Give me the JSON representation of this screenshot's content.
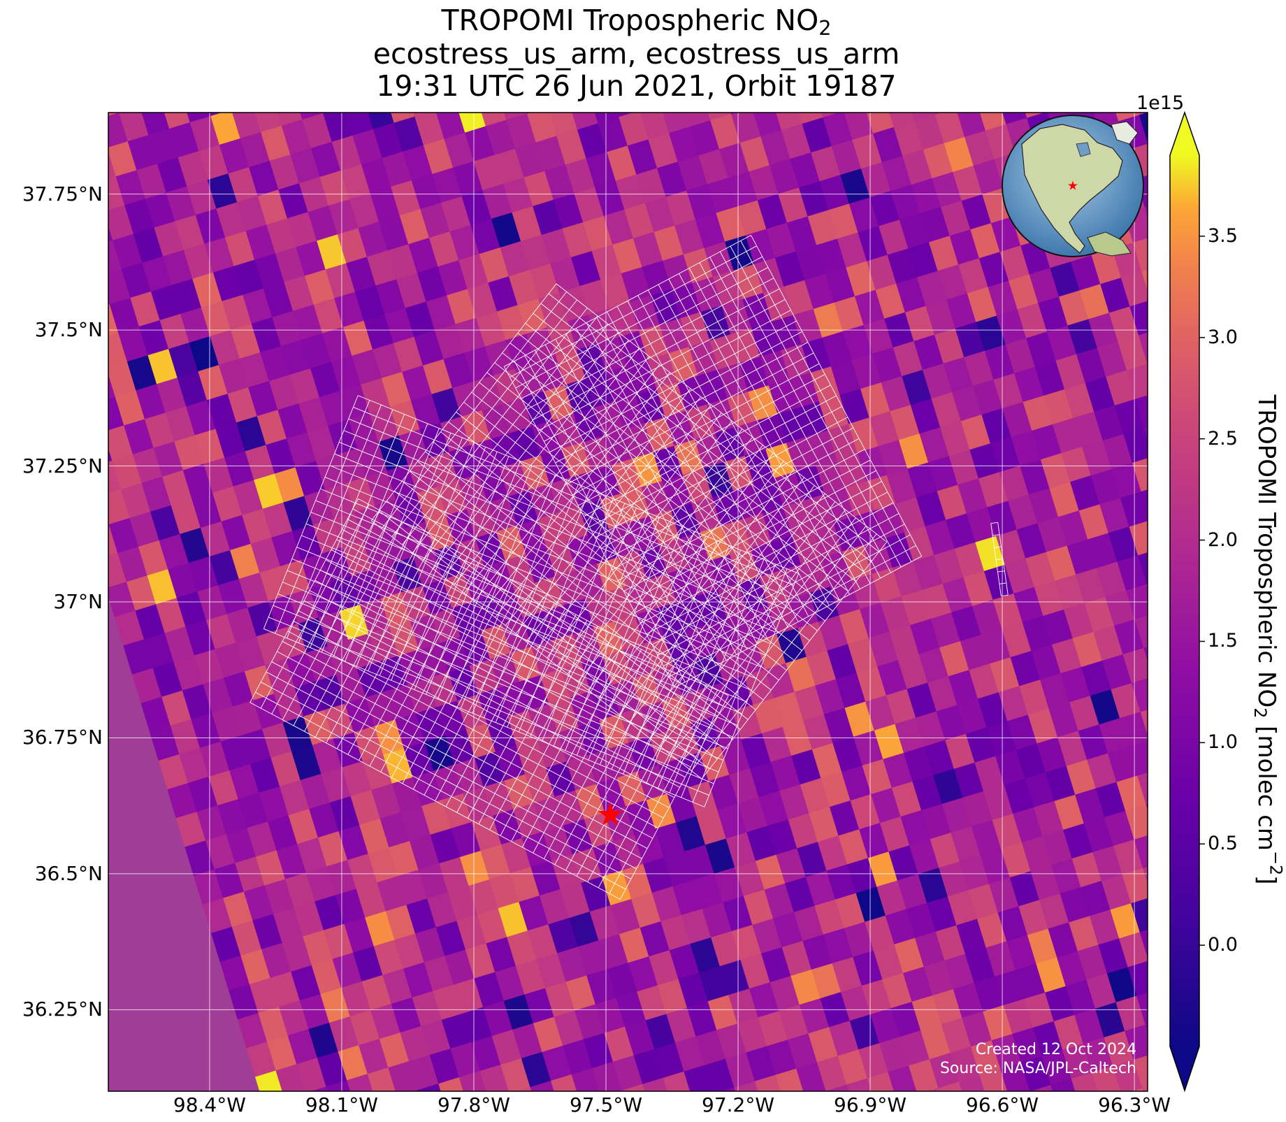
{
  "title": {
    "line1_main": "TROPOMI Tropospheric NO",
    "line1_sub": "2",
    "line2": "ecostress_us_arm, ecostress_us_arm",
    "line3": "19:31 UTC 26 Jun 2021, Orbit 19187"
  },
  "map": {
    "lon_range": [
      -98.63,
      -96.27
    ],
    "lat_range": [
      36.1,
      37.9
    ],
    "lat_ticks": [
      {
        "value": 37.75,
        "label": "37.75°N"
      },
      {
        "value": 37.5,
        "label": "37.5°N"
      },
      {
        "value": 37.25,
        "label": "37.25°N"
      },
      {
        "value": 37.0,
        "label": "37°N"
      },
      {
        "value": 36.75,
        "label": "36.75°N"
      },
      {
        "value": 36.5,
        "label": "36.5°N"
      },
      {
        "value": 36.25,
        "label": "36.25°N"
      }
    ],
    "lon_ticks": [
      {
        "value": -98.4,
        "label": "98.4°W"
      },
      {
        "value": -98.1,
        "label": "98.1°W"
      },
      {
        "value": -97.8,
        "label": "97.8°W"
      },
      {
        "value": -97.5,
        "label": "97.5°W"
      },
      {
        "value": -97.2,
        "label": "97.2°W"
      },
      {
        "value": -96.9,
        "label": "96.9°W"
      },
      {
        "value": -96.6,
        "label": "96.6°W"
      },
      {
        "value": -96.3,
        "label": "96.3°W"
      }
    ],
    "site_marker": {
      "lon": -97.49,
      "lat": 36.61,
      "color": "#ff0000"
    },
    "grid_color": "#ffffff",
    "overlay_color": "#ffffff",
    "colormap": "plasma",
    "inset": {
      "type": "globe",
      "marker_color": "#ff0000"
    }
  },
  "colorbar": {
    "min": -0.5,
    "max": 3.9,
    "exponent_label": "1e15",
    "ticks": [
      {
        "value": 0.0,
        "label": "0.0"
      },
      {
        "value": 0.5,
        "label": "0.5"
      },
      {
        "value": 1.0,
        "label": "1.0"
      },
      {
        "value": 1.5,
        "label": "1.5"
      },
      {
        "value": 2.0,
        "label": "2.0"
      },
      {
        "value": 2.5,
        "label": "2.5"
      },
      {
        "value": 3.0,
        "label": "3.0"
      },
      {
        "value": 3.5,
        "label": "3.5"
      }
    ],
    "label_main": "TROPOMI Tropospheric NO",
    "label_sub": "2",
    "label_units": " [molec cm",
    "label_sup": "−2",
    "label_end": "]"
  },
  "credit": {
    "line1": "Created 12 Oct 2024",
    "line2": "Source: NASA/JPL-Caltech"
  }
}
